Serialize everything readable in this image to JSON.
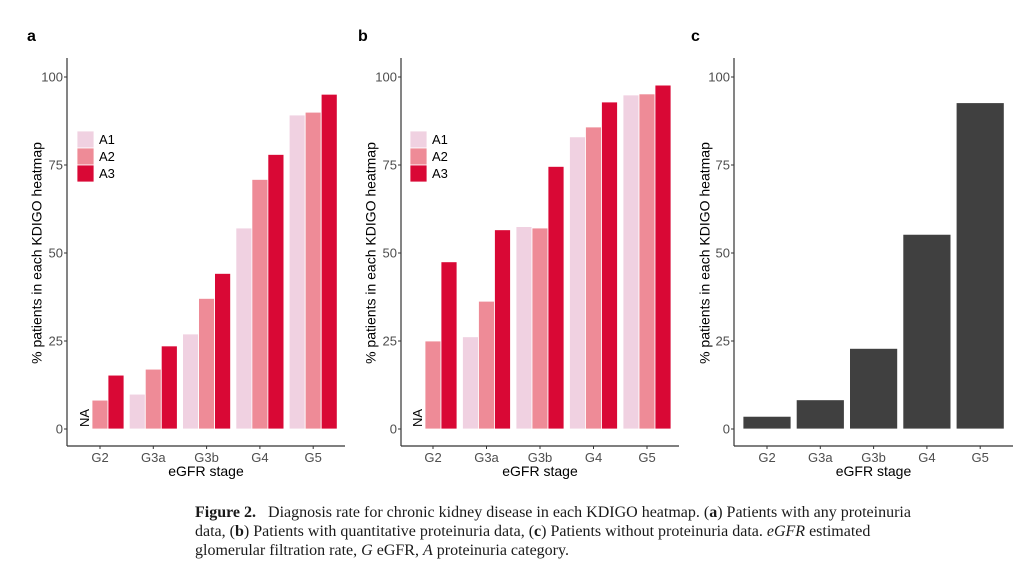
{
  "colors": {
    "A1": "#F0D1E1",
    "A2": "#EE8B97",
    "A3": "#D90835",
    "single": "#404040",
    "axis": "#333333",
    "tick_text": "#4D4D4D"
  },
  "chart_data": [
    {
      "panel_label": "a",
      "type": "bar",
      "categories": [
        "G2",
        "G3a",
        "G3b",
        "G4",
        "G5"
      ],
      "xlabel": "eGFR stage",
      "ylabel": "% patients in each KDIGO heatmap",
      "ylim": [
        -5,
        105
      ],
      "yticks": [
        0,
        25,
        50,
        75,
        100
      ],
      "ytick_labels": [
        "0",
        "25",
        "50",
        "75",
        "100"
      ],
      "grid": false,
      "legend": {
        "placement": "top-left",
        "entries": [
          "A1",
          "A2",
          "A3"
        ]
      },
      "annotations": [
        {
          "category": "G2",
          "series": "A1",
          "text": "NA"
        }
      ],
      "series": [
        {
          "name": "A1",
          "values": [
            null,
            9.9,
            27.0,
            57.1,
            89.2
          ]
        },
        {
          "name": "A2",
          "values": [
            8.2,
            17.0,
            37.1,
            70.9,
            90.0
          ]
        },
        {
          "name": "A3",
          "values": [
            15.3,
            23.6,
            44.2,
            78.0,
            95.1
          ]
        }
      ]
    },
    {
      "panel_label": "b",
      "type": "bar",
      "categories": [
        "G2",
        "G3a",
        "G3b",
        "G4",
        "G5"
      ],
      "xlabel": "eGFR stage",
      "ylabel": "% patients in each KDIGO heatmap",
      "ylim": [
        -5,
        105
      ],
      "yticks": [
        0,
        25,
        50,
        75,
        100
      ],
      "ytick_labels": [
        "0",
        "25",
        "50",
        "75",
        "100"
      ],
      "grid": false,
      "legend": {
        "placement": "top-left",
        "entries": [
          "A1",
          "A2",
          "A3"
        ]
      },
      "annotations": [
        {
          "category": "G2",
          "series": "A1",
          "text": "NA"
        }
      ],
      "series": [
        {
          "name": "A1",
          "values": [
            null,
            26.2,
            57.5,
            83.0,
            94.9
          ]
        },
        {
          "name": "A2",
          "values": [
            25.0,
            36.3,
            57.1,
            85.8,
            95.2
          ]
        },
        {
          "name": "A3",
          "values": [
            47.5,
            56.6,
            74.6,
            92.9,
            97.7
          ]
        }
      ]
    },
    {
      "panel_label": "c",
      "type": "bar",
      "categories": [
        "G2",
        "G3a",
        "G3b",
        "G4",
        "G5"
      ],
      "xlabel": "eGFR stage",
      "ylabel": "% patients in each KDIGO heatmap",
      "ylim": [
        -5,
        105
      ],
      "yticks": [
        0,
        25,
        50,
        75,
        100
      ],
      "ytick_labels": [
        "0",
        "25",
        "50",
        "75",
        "100"
      ],
      "grid": false,
      "series": [
        {
          "name": "all",
          "values": [
            3.6,
            8.3,
            22.9,
            55.3,
            92.7
          ]
        }
      ]
    }
  ],
  "caption": {
    "figure_label": "Figure 2.",
    "line1_text": "Diagnosis rate for chronic kidney disease in each KDIGO heatmap. (",
    "a": "a",
    "line1_rest": ") Patients with any proteinuria",
    "line2_start": "data, (",
    "b": "b",
    "line2_mid": ") Patients with quantitative proteinuria data, (",
    "c": "c",
    "line2_mid2": ") Patients without proteinuria data. ",
    "egfr_abbr": "eGFR",
    "line2_end": " estimated",
    "line3_start": "glomerular filtration rate, ",
    "g_abbr": "G",
    "line3_mid": " eGFR, ",
    "a_abbr": "A",
    "line3_end": " proteinuria category."
  }
}
